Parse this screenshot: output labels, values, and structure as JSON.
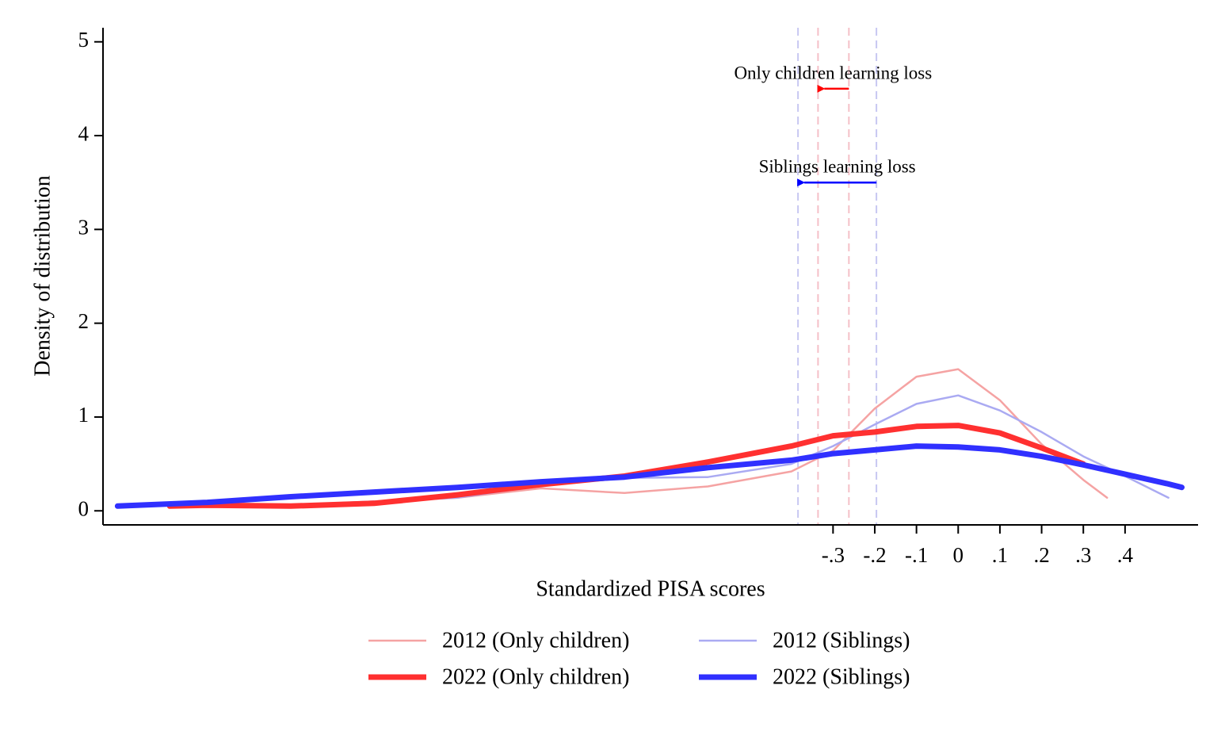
{
  "chart_data": {
    "type": "line",
    "x_label": "Standardized PISA scores",
    "y_label": "Density of distribution",
    "xlim": [
      -2.05,
      0.575
    ],
    "ylim": [
      -0.15,
      5.15
    ],
    "xticks": [
      {
        "value": -0.3,
        "label": "-.3"
      },
      {
        "value": -0.2,
        "label": "-.2"
      },
      {
        "value": -0.1,
        "label": "-.1"
      },
      0,
      {
        "value": 0.1,
        "label": ".1"
      },
      {
        "value": 0.2,
        "label": ".2"
      },
      {
        "value": 0.3,
        "label": ".3"
      },
      {
        "value": 0.4,
        "label": ".4"
      }
    ],
    "yticks": [
      0,
      1,
      2,
      3,
      4,
      5
    ],
    "grid": false,
    "series": [
      {
        "name": "2012 (Only children)",
        "color": "#f5a3a3",
        "width": "thin",
        "x": [
          -1.5,
          -1.2,
          -1.0,
          -0.8,
          -0.6,
          -0.4,
          -0.3,
          -0.2,
          -0.1,
          0,
          0.1,
          0.2,
          0.3,
          0.357
        ],
        "values": [
          0.08,
          0.14,
          0.24,
          0.19,
          0.26,
          0.42,
          0.64,
          1.09,
          1.43,
          1.51,
          1.18,
          0.71,
          0.33,
          0.14
        ]
      },
      {
        "name": "2012 (Siblings)",
        "color": "#aaaaf2",
        "width": "thin",
        "x": [
          -1.5,
          -1.2,
          -1.0,
          -0.8,
          -0.6,
          -0.4,
          -0.3,
          -0.2,
          -0.1,
          0,
          0.1,
          0.2,
          0.3,
          0.4,
          0.504
        ],
        "values": [
          0.08,
          0.14,
          0.27,
          0.35,
          0.36,
          0.5,
          0.69,
          0.92,
          1.14,
          1.23,
          1.07,
          0.84,
          0.58,
          0.37,
          0.14
        ]
      },
      {
        "name": "2022 (Only children)",
        "color": "#ff3030",
        "width": "thick",
        "x": [
          -1.89,
          -1.8,
          -1.6,
          -1.4,
          -1.2,
          -1.0,
          -0.8,
          -0.6,
          -0.4,
          -0.3,
          -0.2,
          -0.1,
          0,
          0.1,
          0.2,
          0.3
        ],
        "values": [
          0.05,
          0.06,
          0.05,
          0.08,
          0.17,
          0.28,
          0.37,
          0.52,
          0.69,
          0.8,
          0.84,
          0.9,
          0.91,
          0.83,
          0.67,
          0.5
        ]
      },
      {
        "name": "2022 (Siblings)",
        "color": "#3030ff",
        "width": "thick",
        "x": [
          -2.015,
          -1.8,
          -1.6,
          -1.4,
          -1.2,
          -1.0,
          -0.8,
          -0.6,
          -0.4,
          -0.3,
          -0.2,
          -0.1,
          0,
          0.1,
          0.2,
          0.3,
          0.4,
          0.5,
          0.536
        ],
        "values": [
          0.05,
          0.09,
          0.15,
          0.2,
          0.25,
          0.31,
          0.36,
          0.46,
          0.54,
          0.61,
          0.65,
          0.69,
          0.68,
          0.65,
          0.58,
          0.49,
          0.39,
          0.29,
          0.25
        ]
      }
    ],
    "vlines": [
      {
        "x": -0.384,
        "color": "#c8c8f2"
      },
      {
        "x": -0.336,
        "color": "#f5c0c8"
      },
      {
        "x": -0.262,
        "color": "#f5c0c8"
      },
      {
        "x": -0.196,
        "color": "#c8c8f2"
      }
    ],
    "annotations": [
      {
        "text": "Only children learning loss",
        "x": -0.3,
        "y": 4.65,
        "color": "#ff0000",
        "arrow_from": -0.262,
        "arrow_to": -0.336,
        "arrow_y": 4.5
      },
      {
        "text": "Siblings learning loss",
        "x": -0.29,
        "y": 3.65,
        "color": "#0000ff",
        "arrow_from": -0.196,
        "arrow_to": -0.384,
        "arrow_y": 3.5
      }
    ]
  }
}
